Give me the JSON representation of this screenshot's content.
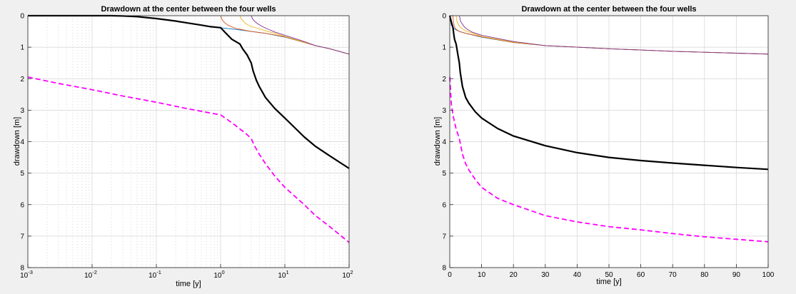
{
  "colors": {
    "background": "#f0f0f0",
    "axes_bg": "#ffffff",
    "grid": "#d4d4d4",
    "main_curve": "#000000",
    "dashed_curve": "#ff00ff",
    "well_1": "#0072bd",
    "well_2": "#d95319",
    "well_3": "#edb120",
    "well_4": "#7e2f8e"
  },
  "chart_data": [
    {
      "type": "line",
      "title": "Drawdown at the center between the four wells",
      "xlabel": "time [y]",
      "ylabel": "drawdown [m]",
      "xscale": "log",
      "xlim": [
        0.001,
        100
      ],
      "ylim": [
        0,
        8
      ],
      "y_reversed": true,
      "grid": true,
      "minor_grid": true,
      "xticks": [
        {
          "value": 0.001,
          "base": "10",
          "exp": "-3"
        },
        {
          "value": 0.01,
          "base": "10",
          "exp": "-2"
        },
        {
          "value": 0.1,
          "base": "10",
          "exp": "-1"
        },
        {
          "value": 1,
          "base": "10",
          "exp": "0"
        },
        {
          "value": 10,
          "base": "10",
          "exp": "1"
        },
        {
          "value": 100,
          "base": "10",
          "exp": "2"
        }
      ],
      "yticks": [
        "0",
        "1",
        "2",
        "3",
        "4",
        "5",
        "6",
        "7",
        "8"
      ],
      "series": [
        {
          "style": "thick-solid",
          "color_key": "main_curve",
          "x": [
            0.001,
            0.003,
            0.01,
            0.02,
            0.03,
            0.05,
            0.1,
            0.2,
            0.3,
            0.5,
            0.7,
            1.0,
            1.2,
            1.5,
            2.0,
            2.2,
            2.6,
            3.0,
            3.2,
            3.6,
            4.0,
            5.0,
            7.0,
            10,
            20,
            30,
            50,
            100
          ],
          "y": [
            0,
            0,
            0,
            0,
            0.01,
            0.03,
            0.09,
            0.17,
            0.23,
            0.3,
            0.35,
            0.38,
            0.55,
            0.75,
            0.9,
            1.05,
            1.25,
            1.5,
            1.75,
            2.05,
            2.25,
            2.6,
            2.95,
            3.25,
            3.85,
            4.15,
            4.45,
            4.85
          ]
        },
        {
          "style": "dashed",
          "color_key": "dashed_curve",
          "x": [
            0.001,
            0.003,
            0.01,
            0.03,
            0.1,
            0.3,
            1.0,
            1.5,
            2.0,
            2.5,
            3.0,
            3.3,
            4.0,
            5.0,
            7.0,
            10,
            20,
            30,
            50,
            100
          ],
          "y": [
            1.95,
            2.15,
            2.35,
            2.55,
            2.75,
            2.95,
            3.15,
            3.4,
            3.6,
            3.75,
            3.9,
            4.1,
            4.4,
            4.7,
            5.1,
            5.45,
            6.0,
            6.35,
            6.7,
            7.2
          ]
        },
        {
          "style": "thin",
          "color_key": "well_1",
          "x": [
            1.0,
            2.0,
            3.0,
            5.0,
            10,
            20,
            30,
            50,
            100
          ],
          "y": [
            0.38,
            0.45,
            0.5,
            0.56,
            0.68,
            0.85,
            0.95,
            1.05,
            1.22
          ]
        },
        {
          "style": "thin",
          "color_key": "well_2",
          "x": [
            1.0,
            1.05,
            1.15,
            1.3,
            1.6,
            2.0,
            3.0,
            5.0,
            10,
            20,
            30,
            50,
            100
          ],
          "y": [
            0.0,
            0.12,
            0.22,
            0.3,
            0.38,
            0.43,
            0.5,
            0.56,
            0.67,
            0.85,
            0.95,
            1.05,
            1.22
          ]
        },
        {
          "style": "thin",
          "color_key": "well_3",
          "x": [
            2.0,
            2.1,
            2.3,
            2.6,
            3.0,
            4.0,
            5.0,
            7.0,
            10,
            20,
            30,
            50,
            100
          ],
          "y": [
            0.0,
            0.1,
            0.2,
            0.28,
            0.34,
            0.42,
            0.48,
            0.56,
            0.66,
            0.84,
            0.95,
            1.05,
            1.22
          ]
        },
        {
          "style": "thin",
          "color_key": "well_4",
          "x": [
            3.0,
            3.15,
            3.4,
            3.8,
            4.5,
            5.5,
            7.0,
            10,
            20,
            30,
            50,
            100
          ],
          "y": [
            0.0,
            0.1,
            0.18,
            0.26,
            0.35,
            0.43,
            0.52,
            0.62,
            0.82,
            0.95,
            1.05,
            1.22
          ]
        }
      ]
    },
    {
      "type": "line",
      "title": "Drawdown at the center between the four wells",
      "xlabel": "time [y]",
      "ylabel": "drawdown [m]",
      "xscale": "linear",
      "xlim": [
        0,
        100
      ],
      "ylim": [
        0,
        8
      ],
      "y_reversed": true,
      "grid": true,
      "minor_grid": false,
      "xticks": [
        "0",
        "10",
        "20",
        "30",
        "40",
        "50",
        "60",
        "70",
        "80",
        "90",
        "100"
      ],
      "yticks": [
        "0",
        "1",
        "2",
        "3",
        "4",
        "5",
        "6",
        "7",
        "8"
      ],
      "series": [
        {
          "style": "thick-solid",
          "color_key": "main_curve",
          "x": [
            0,
            0.5,
            1.0,
            1.2,
            1.5,
            2.0,
            2.5,
            3.0,
            3.3,
            4,
            5,
            6,
            8,
            10,
            15,
            20,
            30,
            40,
            50,
            60,
            70,
            80,
            90,
            100
          ],
          "y": [
            0,
            0.2,
            0.38,
            0.55,
            0.75,
            0.9,
            1.2,
            1.5,
            1.8,
            2.25,
            2.6,
            2.78,
            3.05,
            3.25,
            3.58,
            3.82,
            4.13,
            4.35,
            4.5,
            4.6,
            4.68,
            4.75,
            4.82,
            4.88
          ]
        },
        {
          "style": "dashed",
          "color_key": "dashed_curve",
          "x": [
            0,
            0.5,
            1.0,
            2.0,
            3.0,
            4,
            5,
            6,
            8,
            10,
            15,
            20,
            30,
            40,
            50,
            60,
            70,
            80,
            90,
            100
          ],
          "y": [
            1.95,
            2.8,
            3.15,
            3.6,
            3.9,
            4.4,
            4.7,
            4.9,
            5.2,
            5.45,
            5.8,
            6.0,
            6.35,
            6.55,
            6.7,
            6.8,
            6.92,
            7.02,
            7.1,
            7.18
          ]
        },
        {
          "style": "thin",
          "color_key": "well_1",
          "x": [
            0,
            0.5,
            1,
            2,
            3,
            5,
            10,
            20,
            30,
            40,
            50,
            60,
            70,
            80,
            90,
            100
          ],
          "y": [
            0,
            0.3,
            0.38,
            0.45,
            0.5,
            0.56,
            0.68,
            0.85,
            0.95,
            1.0,
            1.05,
            1.09,
            1.13,
            1.16,
            1.19,
            1.22
          ]
        },
        {
          "style": "thin",
          "color_key": "well_2",
          "x": [
            1.0,
            1.15,
            1.5,
            2,
            3,
            5,
            10,
            20,
            30,
            40,
            50,
            60,
            70,
            80,
            90,
            100
          ],
          "y": [
            0,
            0.22,
            0.36,
            0.43,
            0.5,
            0.56,
            0.67,
            0.85,
            0.95,
            1.0,
            1.05,
            1.09,
            1.13,
            1.16,
            1.19,
            1.22
          ]
        },
        {
          "style": "thin",
          "color_key": "well_3",
          "x": [
            2.0,
            2.3,
            3,
            4,
            5,
            10,
            20,
            30,
            40,
            50,
            60,
            70,
            80,
            90,
            100
          ],
          "y": [
            0,
            0.2,
            0.34,
            0.42,
            0.48,
            0.66,
            0.84,
            0.95,
            1.0,
            1.05,
            1.09,
            1.13,
            1.16,
            1.19,
            1.22
          ]
        },
        {
          "style": "thin",
          "color_key": "well_4",
          "x": [
            3.0,
            3.4,
            4.5,
            5.5,
            7,
            10,
            20,
            30,
            40,
            50,
            60,
            70,
            80,
            90,
            100
          ],
          "y": [
            0,
            0.18,
            0.35,
            0.43,
            0.52,
            0.62,
            0.82,
            0.95,
            1.0,
            1.05,
            1.09,
            1.13,
            1.16,
            1.19,
            1.22
          ]
        }
      ]
    }
  ]
}
